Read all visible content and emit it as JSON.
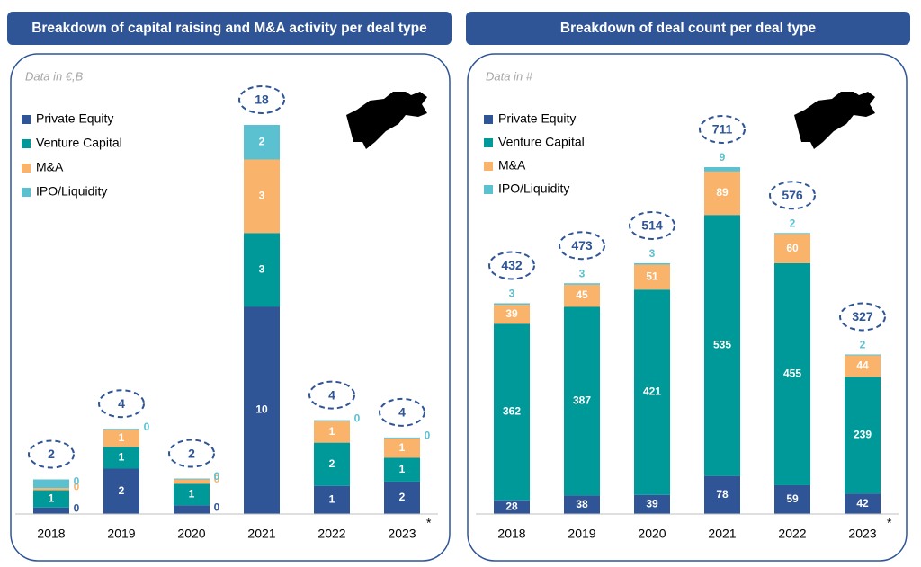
{
  "chart_data": [
    {
      "type": "bar",
      "stacked": true,
      "title": "Breakdown of capital raising and M&A activity per deal type",
      "subtitle": "Data in €,B",
      "categories": [
        "2018",
        "2019",
        "2020",
        "2021",
        "2022",
        "2023"
      ],
      "series": [
        {
          "name": "Private Equity",
          "color": "#2f5597",
          "values": [
            0.3,
            2.1,
            0.4,
            9.6,
            1.3,
            1.5
          ],
          "value_labels": [
            "0",
            "2",
            "0",
            "10",
            "1",
            "2"
          ]
        },
        {
          "name": "Venture Capital",
          "color": "#009999",
          "values": [
            0.8,
            1.0,
            1.0,
            3.4,
            2.0,
            1.1
          ],
          "value_labels": [
            "1",
            "1",
            "1",
            "3",
            "2",
            "1"
          ]
        },
        {
          "name": "M&A",
          "color": "#f9b36b",
          "values": [
            0.1,
            0.8,
            0.2,
            3.4,
            1.0,
            0.9
          ],
          "value_labels": [
            "0",
            "1",
            "0",
            "3",
            "1",
            "1"
          ]
        },
        {
          "name": "IPO/Liquidity",
          "color": "#5bc0d0",
          "values": [
            0.4,
            0.04,
            0.04,
            1.6,
            0.04,
            0.04
          ],
          "value_labels": [
            "0",
            "0",
            "0",
            "2",
            "0",
            "0"
          ]
        }
      ],
      "totals": [
        1.6,
        3.94,
        1.64,
        18,
        4.34,
        3.54
      ],
      "total_labels": [
        "2",
        "4",
        "2",
        "18",
        "4",
        "4"
      ],
      "note": "*"
    },
    {
      "type": "bar",
      "stacked": true,
      "title": "Breakdown of deal count per deal type",
      "subtitle": "Data in #",
      "categories": [
        "2018",
        "2019",
        "2020",
        "2021",
        "2022",
        "2023"
      ],
      "series": [
        {
          "name": "Private Equity",
          "color": "#2f5597",
          "values": [
            28,
            38,
            39,
            78,
            59,
            42
          ]
        },
        {
          "name": "Venture Capital",
          "color": "#009999",
          "values": [
            362,
            387,
            421,
            535,
            455,
            239
          ]
        },
        {
          "name": "M&A",
          "color": "#f9b36b",
          "values": [
            39,
            45,
            51,
            89,
            60,
            44
          ]
        },
        {
          "name": "IPO/Liquidity",
          "color": "#5bc0d0",
          "values": [
            3,
            3,
            3,
            9,
            2,
            2
          ]
        }
      ],
      "totals": [
        432,
        473,
        514,
        711,
        576,
        327
      ],
      "note": "*"
    }
  ]
}
